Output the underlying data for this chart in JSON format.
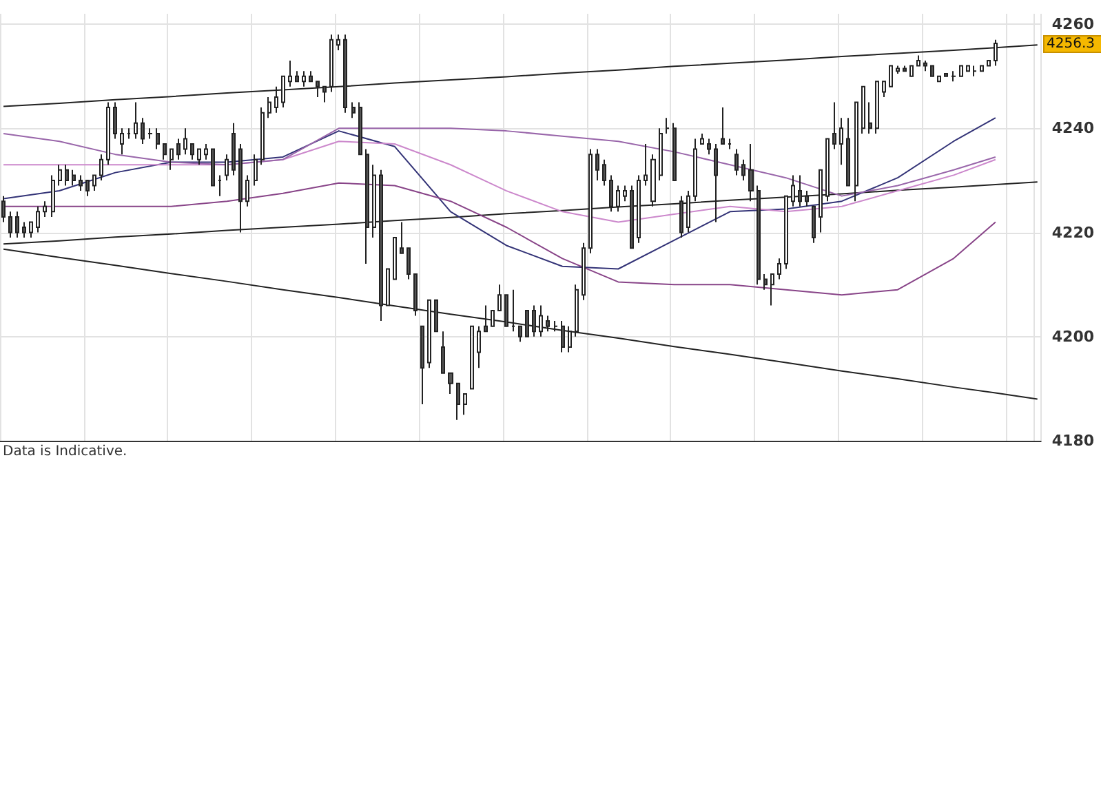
{
  "chart_data": {
    "type": "candlestick",
    "categories": [
      null,
      null,
      null,
      null,
      null,
      null,
      null,
      null,
      null,
      null,
      null,
      null,
      null,
      null,
      null,
      null,
      null,
      null,
      null,
      null,
      null,
      null,
      null,
      null,
      null,
      null,
      null,
      null,
      null,
      null,
      null,
      null,
      null,
      null,
      null,
      null,
      null,
      null,
      null,
      null,
      null,
      null,
      null,
      null,
      null,
      null,
      null,
      null,
      null,
      null,
      null,
      null,
      null,
      null,
      null,
      null,
      null,
      null,
      null,
      null,
      null,
      null,
      null,
      null,
      null,
      null,
      null,
      null,
      null,
      null,
      null,
      null,
      null,
      null,
      null,
      null,
      null,
      null,
      null,
      null,
      null,
      null,
      null,
      null,
      null,
      null,
      null,
      null,
      null,
      null,
      null,
      null,
      null,
      null,
      null,
      null,
      null,
      null,
      null,
      null,
      null,
      null,
      null,
      null,
      null,
      null,
      null,
      null,
      null,
      null,
      null,
      null,
      null,
      null,
      null,
      null,
      null,
      null,
      null,
      null,
      null,
      null,
      null,
      null,
      null,
      null,
      null,
      null,
      null,
      null,
      null,
      null,
      null,
      null,
      null,
      null,
      null,
      null,
      null,
      null,
      null,
      null,
      null,
      null,
      null,
      null,
      null,
      null,
      null
    ],
    "ohlc": [
      [
        4226,
        4227,
        4222,
        4223
      ],
      [
        4223,
        4224,
        4219,
        4220
      ],
      [
        4223,
        4224,
        4219,
        4220
      ],
      [
        4221,
        4222,
        4219,
        4220
      ],
      [
        4220,
        4222,
        4219,
        4222
      ],
      [
        4221,
        4225,
        4220,
        4224
      ],
      [
        4224,
        4226,
        4223,
        4225
      ],
      [
        4224,
        4231,
        4223,
        4230
      ],
      [
        4230,
        4233,
        4229,
        4232
      ],
      [
        4232,
        4233,
        4229,
        4230
      ],
      [
        4231,
        4232,
        4229,
        4230
      ],
      [
        4230,
        4231,
        4228,
        4229
      ],
      [
        4230,
        4230,
        4227,
        4228
      ],
      [
        4229,
        4231,
        4228,
        4231
      ],
      [
        4231,
        4235,
        4230,
        4234
      ],
      [
        4234,
        4245,
        4233,
        4244
      ],
      [
        4244,
        4245,
        4238,
        4239
      ],
      [
        4237,
        4240,
        4235,
        4239
      ],
      [
        4239,
        4240,
        4238,
        4239
      ],
      [
        4239,
        4245,
        4238,
        4241
      ],
      [
        4241,
        4242,
        4237,
        4238
      ],
      [
        4239,
        4240,
        4238,
        4239
      ],
      [
        4239,
        4240,
        4236,
        4237
      ],
      [
        4237,
        4237,
        4234,
        4235
      ],
      [
        4234,
        4236,
        4232,
        4236
      ],
      [
        4237,
        4238,
        4234,
        4235
      ],
      [
        4236,
        4240,
        4235,
        4238
      ],
      [
        4237,
        4237,
        4234,
        4235
      ],
      [
        4234,
        4236,
        4233,
        4236
      ],
      [
        4235,
        4237,
        4234,
        4236
      ],
      [
        4236,
        4236,
        4229,
        4229
      ],
      [
        4230,
        4231,
        4227,
        4230
      ],
      [
        4231,
        4235,
        4230,
        4234
      ],
      [
        4239,
        4241,
        4231,
        4232
      ],
      [
        4236,
        4237,
        4220,
        4226
      ],
      [
        4226,
        4231,
        4225,
        4230
      ],
      [
        4230,
        4235,
        4229,
        4234
      ],
      [
        4234,
        4244,
        4233,
        4243
      ],
      [
        4243,
        4246,
        4242,
        4245
      ],
      [
        4244,
        4248,
        4243,
        4246
      ],
      [
        4245,
        4250,
        4244,
        4250
      ],
      [
        4249,
        4253,
        4248,
        4250
      ],
      [
        4250,
        4251,
        4249,
        4249
      ],
      [
        4249,
        4251,
        4248,
        4250
      ],
      [
        4250,
        4251,
        4249,
        4249
      ],
      [
        4249,
        4249,
        4246,
        4248
      ],
      [
        4248,
        4248,
        4245,
        4247
      ],
      [
        4248,
        4258,
        4247,
        4257
      ],
      [
        4256,
        4258,
        4255,
        4257
      ],
      [
        4257,
        4258,
        4243,
        4244
      ],
      [
        4244,
        4245,
        4242,
        4243
      ],
      [
        4244,
        4245,
        4235,
        4235
      ],
      [
        4235,
        4236,
        4214,
        4221
      ],
      [
        4221,
        4233,
        4219,
        4231
      ],
      [
        4231,
        4232,
        4203,
        4206
      ],
      [
        4206,
        4213,
        4206,
        4213
      ],
      [
        4211,
        4219,
        4211,
        4219
      ],
      [
        4217,
        4222,
        4216,
        4216
      ],
      [
        4217,
        4217,
        4211,
        4212
      ],
      [
        4212,
        4212,
        4204,
        4205
      ],
      [
        4202,
        4202,
        4187,
        4194
      ],
      [
        4195,
        4207,
        4194,
        4207
      ],
      [
        4207,
        4207,
        4201,
        4201
      ],
      [
        4198,
        4201,
        4193,
        4193
      ],
      [
        4193,
        4193,
        4189,
        4191
      ],
      [
        4191,
        4191,
        4184,
        4187
      ],
      [
        4187,
        4189,
        4185,
        4189
      ],
      [
        4190,
        4202,
        4190,
        4202
      ],
      [
        4197,
        4202,
        4194,
        4201
      ],
      [
        4202,
        4206,
        4201,
        4201
      ],
      [
        4202,
        4205,
        4202,
        4205
      ],
      [
        4205,
        4210,
        4205,
        4208
      ],
      [
        4208,
        4208,
        4202,
        4202
      ],
      [
        4202,
        4209,
        4201,
        4202
      ],
      [
        4202,
        4202,
        4199,
        4200
      ],
      [
        4205,
        4205,
        4200,
        4200
      ],
      [
        4205,
        4206,
        4200,
        4201
      ],
      [
        4201,
        4206,
        4200,
        4204
      ],
      [
        4203,
        4204,
        4201,
        4202
      ],
      [
        4202,
        4203,
        4201,
        4202
      ],
      [
        4202,
        4203,
        4197,
        4198
      ],
      [
        4198,
        4202,
        4197,
        4201
      ],
      [
        4201,
        4210,
        4200,
        4209
      ],
      [
        4208,
        4218,
        4207,
        4217
      ],
      [
        4217,
        4236,
        4216,
        4235
      ],
      [
        4235,
        4236,
        4230,
        4232
      ],
      [
        4233,
        4234,
        4229,
        4230
      ],
      [
        4230,
        4231,
        4224,
        4225
      ],
      [
        4225,
        4229,
        4224,
        4228
      ],
      [
        4227,
        4229,
        4226,
        4228
      ],
      [
        4228,
        4229,
        4217,
        4217
      ],
      [
        4219,
        4231,
        4218,
        4230
      ],
      [
        4230,
        4237,
        4229,
        4231
      ],
      [
        4226,
        4235,
        4225,
        4234
      ],
      [
        4231,
        4240,
        4230,
        4239
      ],
      [
        4240,
        4242,
        4239,
        4240
      ],
      [
        4240,
        4241,
        4230,
        4230
      ],
      [
        4226,
        4227,
        4219,
        4220
      ],
      [
        4221,
        4228,
        4220,
        4227
      ],
      [
        4227,
        4238,
        4226,
        4236
      ],
      [
        4237,
        4239,
        4237,
        4238
      ],
      [
        4237,
        4238,
        4235,
        4236
      ],
      [
        4236,
        4237,
        4222,
        4231
      ],
      [
        4238,
        4244,
        4237,
        4237
      ],
      [
        4237,
        4238,
        4236,
        4237
      ],
      [
        4235,
        4236,
        4231,
        4232
      ],
      [
        4233,
        4234,
        4230,
        4231
      ],
      [
        4232,
        4237,
        4226,
        4228
      ],
      [
        4228,
        4229,
        4210,
        4211
      ],
      [
        4211,
        4212,
        4209,
        4210
      ],
      [
        4210,
        4212,
        4206,
        4212
      ],
      [
        4212,
        4215,
        4211,
        4214
      ],
      [
        4214,
        4227,
        4213,
        4227
      ],
      [
        4226,
        4231,
        4225,
        4229
      ],
      [
        4228,
        4231,
        4225,
        4226
      ],
      [
        4227,
        4228,
        4225,
        4226
      ],
      [
        4225,
        4225,
        4218,
        4219
      ],
      [
        4223,
        4232,
        4220,
        4232
      ],
      [
        4227,
        4238,
        4226,
        4238
      ],
      [
        4239,
        4245,
        4236,
        4237
      ],
      [
        4237,
        4242,
        4233,
        4240
      ],
      [
        4238,
        4242,
        4229,
        4229
      ],
      [
        4229,
        4245,
        4226,
        4245
      ],
      [
        4240,
        4248,
        4239,
        4248
      ],
      [
        4241,
        4245,
        4239,
        4240
      ],
      [
        4240,
        4249,
        4239,
        4249
      ],
      [
        4247,
        4249,
        4246,
        4249
      ],
      [
        4248,
        4252,
        4248,
        4252
      ],
      [
        4251,
        4252,
        4250.5,
        4251.5
      ],
      [
        4251.5,
        4252,
        4251,
        4251
      ],
      [
        4250,
        4252,
        4250,
        4252
      ],
      [
        4252,
        4254,
        4252,
        4253
      ],
      [
        4252.5,
        4253,
        4251,
        4252
      ],
      [
        4252,
        4252,
        4250,
        4250
      ],
      [
        4249,
        4250,
        4249,
        4250
      ],
      [
        4250.5,
        4250.5,
        4250,
        4250
      ],
      [
        4250,
        4251,
        4249,
        4250
      ],
      [
        4250,
        4252,
        4250,
        4252
      ],
      [
        4251,
        4252,
        4251,
        4252
      ],
      [
        4251,
        4252,
        4250,
        4251
      ],
      [
        4251,
        4252,
        4251,
        4252
      ],
      [
        4252,
        4253,
        4252,
        4253
      ],
      [
        4253,
        4257,
        4252,
        4256.3
      ],
      null,
      null,
      null,
      null,
      null,
      null
    ],
    "series": [
      {
        "type": "line",
        "color": "#222222",
        "values": [
          4244.2,
          null,
          null,
          null,
          null,
          null,
          null,
          null,
          4244.8,
          null,
          null,
          null,
          null,
          null,
          null,
          null,
          4245.5,
          null,
          null,
          null,
          null,
          null,
          null,
          null,
          4246.1,
          null,
          null,
          null,
          null,
          null,
          null,
          null,
          4246.8,
          null,
          null,
          null,
          null,
          null,
          null,
          null,
          4247.4,
          null,
          null,
          null,
          null,
          null,
          null,
          null,
          4248,
          null,
          null,
          null,
          null,
          null,
          null,
          null,
          4248.7,
          null,
          null,
          null,
          null,
          null,
          null,
          null,
          4249.3,
          null,
          null,
          null,
          null,
          null,
          null,
          null,
          4249.9,
          null,
          null,
          null,
          null,
          null,
          null,
          null,
          4250.6,
          null,
          null,
          null,
          null,
          null,
          null,
          null,
          4251.2,
          null,
          null,
          null,
          null,
          null,
          null,
          null,
          4251.9,
          null,
          null,
          null,
          null,
          null,
          null,
          null,
          4252.5,
          null,
          null,
          null,
          null,
          null,
          null,
          null,
          4253.1,
          null,
          null,
          null,
          null,
          null,
          null,
          null,
          4253.8,
          null,
          null,
          null,
          null,
          null,
          null,
          null,
          4254.4,
          null,
          null,
          null,
          null,
          null,
          null,
          null,
          4255,
          null,
          null,
          null,
          null,
          null,
          4255.5,
          null,
          null,
          null,
          null,
          null,
          4256
        ]
      },
      {
        "type": "line",
        "color": "#222222",
        "values": [
          4217.8,
          null,
          null,
          null,
          null,
          null,
          null,
          null,
          4218.4,
          null,
          null,
          null,
          null,
          null,
          null,
          null,
          4219.1,
          null,
          null,
          null,
          null,
          null,
          null,
          null,
          4219.7,
          null,
          null,
          null,
          null,
          null,
          null,
          null,
          4220.4,
          null,
          null,
          null,
          null,
          null,
          null,
          null,
          4221,
          null,
          null,
          null,
          null,
          null,
          null,
          null,
          4221.6,
          null,
          null,
          null,
          null,
          null,
          null,
          null,
          4222.3,
          null,
          null,
          null,
          null,
          null,
          null,
          null,
          4222.9,
          null,
          null,
          null,
          null,
          null,
          null,
          null,
          4223.6,
          null,
          null,
          null,
          null,
          null,
          null,
          null,
          4224.2,
          null,
          null,
          null,
          null,
          null,
          null,
          null,
          4224.9,
          null,
          null,
          null,
          null,
          null,
          null,
          null,
          4225.5,
          null,
          null,
          null,
          null,
          null,
          null,
          null,
          4226.2,
          null,
          null,
          null,
          null,
          null,
          null,
          null,
          4226.8,
          null,
          null,
          null,
          null,
          null,
          null,
          null,
          4227.4,
          null,
          null,
          null,
          null,
          null,
          null,
          null,
          4228.1,
          null,
          null,
          null,
          null,
          null,
          null,
          null,
          4228.7,
          null,
          null,
          null,
          null,
          null,
          4229.2,
          null,
          null,
          null,
          null,
          null,
          4229.7
        ]
      },
      {
        "type": "line",
        "color": "#222222",
        "values": [
          4216.8,
          null,
          null,
          null,
          null,
          null,
          null,
          null,
          4215.2,
          null,
          null,
          null,
          null,
          null,
          null,
          null,
          4213.7,
          null,
          null,
          null,
          null,
          null,
          null,
          null,
          4212.1,
          null,
          null,
          null,
          null,
          null,
          null,
          null,
          4210.6,
          null,
          null,
          null,
          null,
          null,
          null,
          null,
          4209,
          null,
          null,
          null,
          null,
          null,
          null,
          null,
          4207.5,
          null,
          null,
          null,
          null,
          null,
          null,
          null,
          4205.9,
          null,
          null,
          null,
          null,
          null,
          null,
          null,
          4204.3,
          null,
          null,
          null,
          null,
          null,
          null,
          null,
          4202.8,
          null,
          null,
          null,
          null,
          null,
          null,
          null,
          4201.2,
          null,
          null,
          null,
          null,
          null,
          null,
          null,
          4199.7,
          null,
          null,
          null,
          null,
          null,
          null,
          null,
          4198.1,
          null,
          null,
          null,
          null,
          null,
          null,
          null,
          4196.6,
          null,
          null,
          null,
          null,
          null,
          null,
          null,
          4195,
          null,
          null,
          null,
          null,
          null,
          null,
          null,
          4193.4,
          null,
          null,
          null,
          null,
          null,
          null,
          null,
          4191.9,
          null,
          null,
          null,
          null,
          null,
          null,
          null,
          4190.3,
          null,
          null,
          null,
          null,
          null,
          4189.2,
          null,
          null,
          null,
          null,
          null,
          4188
        ]
      },
      {
        "type": "line",
        "color": "#333377",
        "values": [
          4226.5,
          null,
          null,
          null,
          null,
          null,
          null,
          null,
          4228,
          null,
          null,
          null,
          null,
          null,
          null,
          null,
          4231.5,
          null,
          null,
          null,
          null,
          null,
          null,
          null,
          4233.5,
          null,
          null,
          null,
          null,
          null,
          null,
          null,
          4233.5,
          null,
          null,
          null,
          null,
          null,
          null,
          null,
          4234.5,
          null,
          null,
          null,
          null,
          null,
          null,
          null,
          4239.5,
          null,
          null,
          null,
          null,
          null,
          null,
          null,
          4236.5,
          null,
          null,
          null,
          null,
          null,
          null,
          null,
          4224,
          null,
          null,
          null,
          null,
          null,
          null,
          null,
          4217.5,
          null,
          null,
          null,
          null,
          null,
          null,
          null,
          4213.5,
          null,
          null,
          null,
          null,
          null,
          null,
          null,
          4213,
          null,
          null,
          null,
          null,
          null,
          null,
          null,
          4218.5,
          null,
          null,
          null,
          null,
          null,
          null,
          null,
          4224,
          null,
          null,
          null,
          null,
          null,
          null,
          null,
          4224.5,
          null,
          null,
          null,
          null,
          null,
          null,
          null,
          4226,
          null,
          null,
          null,
          null,
          null,
          null,
          null,
          4230.5,
          null,
          null,
          null,
          null,
          null,
          null,
          null,
          4237.5,
          null,
          null,
          null,
          null,
          null,
          4242,
          null,
          null,
          null,
          null,
          null,
          null
        ]
      },
      {
        "type": "line",
        "color": "#cc88cc",
        "values": [
          4233,
          null,
          null,
          null,
          null,
          null,
          null,
          null,
          4233,
          null,
          null,
          null,
          null,
          null,
          null,
          null,
          4233,
          null,
          null,
          null,
          null,
          null,
          null,
          null,
          4233,
          null,
          null,
          null,
          null,
          null,
          null,
          null,
          4233,
          null,
          null,
          null,
          null,
          null,
          null,
          null,
          4234,
          null,
          null,
          null,
          null,
          null,
          null,
          null,
          4237.5,
          null,
          null,
          null,
          null,
          null,
          null,
          null,
          4237,
          null,
          null,
          null,
          null,
          null,
          null,
          null,
          4233,
          null,
          null,
          null,
          null,
          null,
          null,
          null,
          4228,
          null,
          null,
          null,
          null,
          null,
          null,
          null,
          4224,
          null,
          null,
          null,
          null,
          null,
          null,
          null,
          4222,
          null,
          null,
          null,
          null,
          null,
          null,
          null,
          4223.5,
          null,
          null,
          null,
          null,
          null,
          null,
          null,
          4225,
          null,
          null,
          null,
          null,
          null,
          null,
          null,
          4224,
          null,
          null,
          null,
          null,
          null,
          null,
          null,
          4225,
          null,
          null,
          null,
          null,
          null,
          null,
          null,
          4228,
          null,
          null,
          null,
          null,
          null,
          null,
          null,
          4231,
          null,
          null,
          null,
          null,
          null,
          4234,
          null,
          null,
          null,
          null,
          null,
          null
        ]
      },
      {
        "type": "line",
        "color": "#9966aa",
        "values": [
          4239,
          null,
          null,
          null,
          null,
          null,
          null,
          null,
          4237.5,
          null,
          null,
          null,
          null,
          null,
          null,
          null,
          4235,
          null,
          null,
          null,
          null,
          null,
          null,
          null,
          4233.5,
          null,
          null,
          null,
          null,
          null,
          null,
          null,
          4233,
          null,
          null,
          null,
          null,
          null,
          null,
          null,
          4234,
          null,
          null,
          null,
          null,
          null,
          null,
          null,
          4240,
          null,
          null,
          null,
          null,
          null,
          null,
          null,
          4240,
          null,
          null,
          null,
          null,
          null,
          null,
          null,
          4240,
          null,
          null,
          null,
          null,
          null,
          null,
          null,
          4239.5,
          null,
          null,
          null,
          null,
          null,
          null,
          null,
          4238.5,
          null,
          null,
          null,
          null,
          null,
          null,
          null,
          4237.5,
          null,
          null,
          null,
          null,
          null,
          null,
          null,
          4235.5,
          null,
          null,
          null,
          null,
          null,
          null,
          null,
          4233,
          null,
          null,
          null,
          null,
          null,
          null,
          null,
          4230.5,
          null,
          null,
          null,
          null,
          null,
          null,
          null,
          4227,
          null,
          null,
          null,
          null,
          null,
          null,
          null,
          4229,
          null,
          null,
          null,
          null,
          null,
          null,
          null,
          4232,
          null,
          null,
          null,
          null,
          null,
          4234.5,
          null,
          null,
          null,
          null,
          null,
          null
        ]
      },
      {
        "type": "line",
        "color": "#884488",
        "values": [
          4225,
          null,
          null,
          null,
          null,
          null,
          null,
          null,
          4225,
          null,
          null,
          null,
          null,
          null,
          null,
          null,
          4225,
          null,
          null,
          null,
          null,
          null,
          null,
          null,
          4225,
          null,
          null,
          null,
          null,
          null,
          null,
          null,
          4226,
          null,
          null,
          null,
          null,
          null,
          null,
          null,
          4227.5,
          null,
          null,
          null,
          null,
          null,
          null,
          null,
          4229.5,
          null,
          null,
          null,
          null,
          null,
          null,
          null,
          4229,
          null,
          null,
          null,
          null,
          null,
          null,
          null,
          4226,
          null,
          null,
          null,
          null,
          null,
          null,
          null,
          4221,
          null,
          null,
          null,
          null,
          null,
          null,
          null,
          4215,
          null,
          null,
          null,
          null,
          null,
          null,
          null,
          4210.5,
          null,
          null,
          null,
          null,
          null,
          null,
          null,
          4210,
          null,
          null,
          null,
          null,
          null,
          null,
          null,
          4210,
          null,
          null,
          null,
          null,
          null,
          null,
          null,
          4209,
          null,
          null,
          null,
          null,
          null,
          null,
          null,
          4208,
          null,
          null,
          null,
          null,
          null,
          null,
          null,
          4209,
          null,
          null,
          null,
          null,
          null,
          null,
          null,
          4215,
          null,
          null,
          null,
          null,
          null,
          4222,
          null,
          null,
          null,
          null,
          null,
          null
        ]
      }
    ],
    "ylim": [
      4180,
      4262
    ],
    "yticks": [
      4180,
      4200,
      4220,
      4240,
      4260
    ],
    "grid": true,
    "tick_labels": "y",
    "annotations": [
      "4256.3",
      "Data is Indicative."
    ]
  }
}
